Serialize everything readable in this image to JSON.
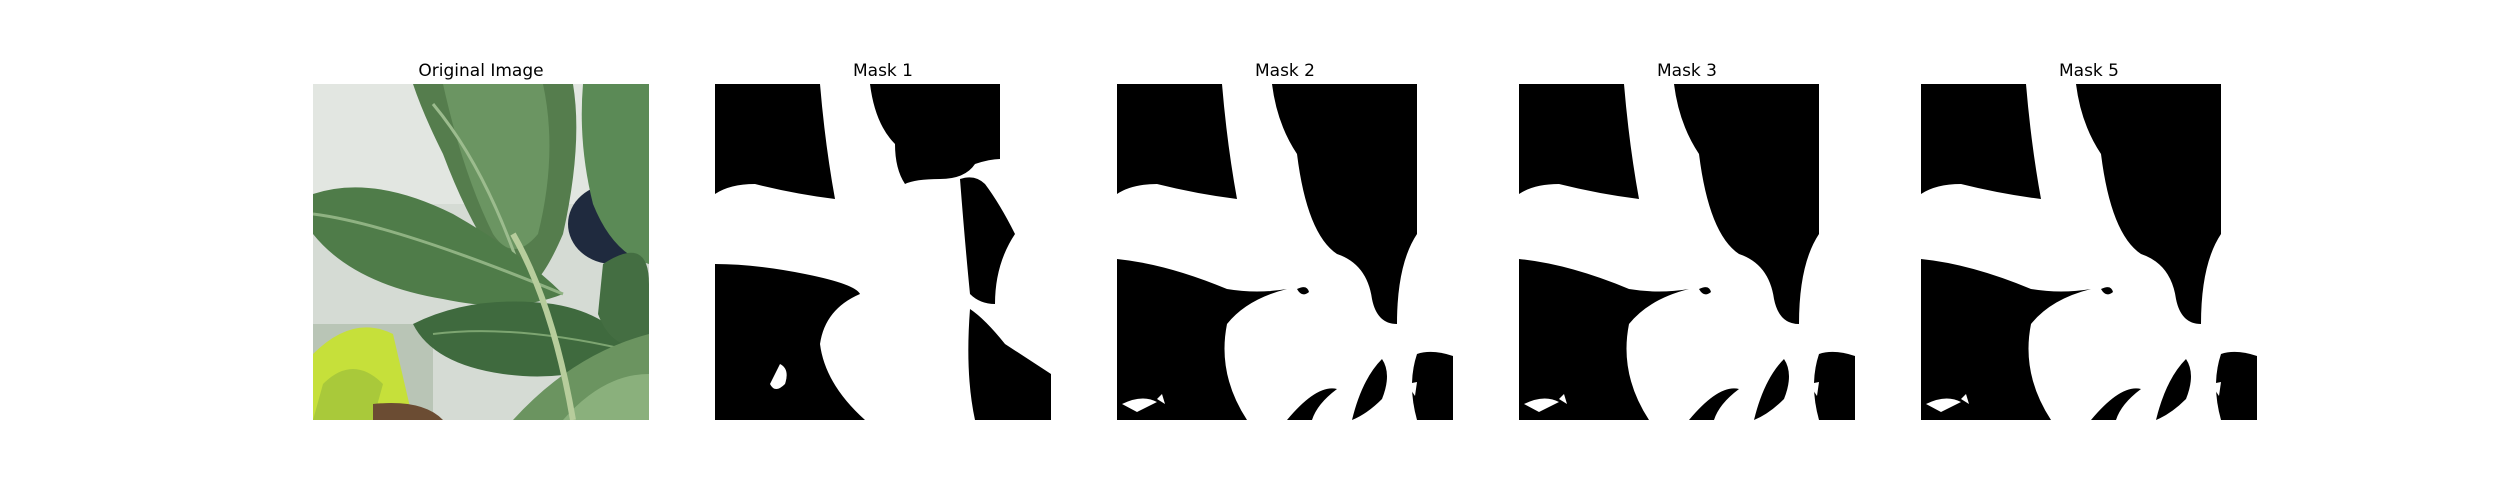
{
  "panels": [
    {
      "title": "Original Image",
      "kind": "photo"
    },
    {
      "title": "Mask 1",
      "kind": "mask"
    },
    {
      "title": "Mask 2",
      "kind": "mask"
    },
    {
      "title": "Mask 3",
      "kind": "mask"
    },
    {
      "title": "Mask 5",
      "kind": "mask"
    }
  ],
  "colors": {
    "background": "#ffffff",
    "mask_foreground": "#ffffff",
    "mask_background": "#000000",
    "leaf_dark": "#3c6a3f",
    "leaf_mid": "#5c8a55",
    "leaf_light": "#86ad74",
    "wall": "#d6dcd6",
    "lime": "#c6e03a",
    "soil": "#6b4c33"
  }
}
